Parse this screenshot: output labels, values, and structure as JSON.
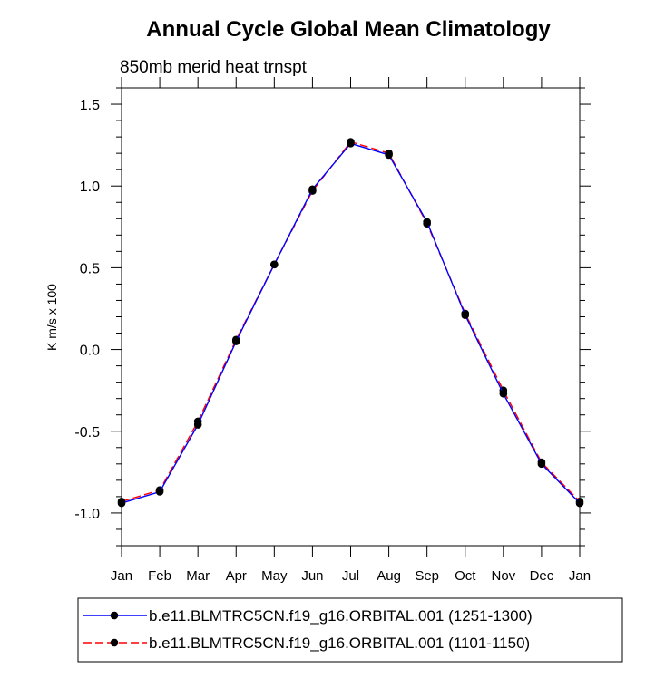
{
  "chart_data": {
    "type": "line",
    "title": "Annual Cycle Global Mean Climatology",
    "subtitle": "850mb merid heat trnspt",
    "xlabel": "",
    "ylabel": "K m/s x 100",
    "categories": [
      "Jan",
      "Feb",
      "Mar",
      "Apr",
      "May",
      "Jun",
      "Jul",
      "Aug",
      "Sep",
      "Oct",
      "Nov",
      "Dec",
      "Jan"
    ],
    "ylim": [
      -1.2,
      1.6
    ],
    "yticks": [
      -1.0,
      -0.5,
      0.0,
      0.5,
      1.0,
      1.5
    ],
    "ytick_labels": [
      "-1.0",
      "-0.5",
      "0.0",
      "0.5",
      "1.0",
      "1.5"
    ],
    "series": [
      {
        "name": "b.e11.BLMTRC5CN.f19_g16.ORBITAL.001 (1251-1300)",
        "color": "#0000ff",
        "dash": "solid",
        "values": [
          -0.94,
          -0.87,
          -0.46,
          0.05,
          0.52,
          0.98,
          1.26,
          1.19,
          0.78,
          0.21,
          -0.27,
          -0.7,
          -0.94
        ]
      },
      {
        "name": "b.e11.BLMTRC5CN.f19_g16.ORBITAL.001 (1101-1150)",
        "color": "#ff0000",
        "dash": "dashed",
        "values": [
          -0.93,
          -0.86,
          -0.44,
          0.06,
          0.52,
          0.97,
          1.27,
          1.2,
          0.77,
          0.22,
          -0.25,
          -0.69,
          -0.93
        ]
      }
    ],
    "legend_position": "bottom"
  }
}
